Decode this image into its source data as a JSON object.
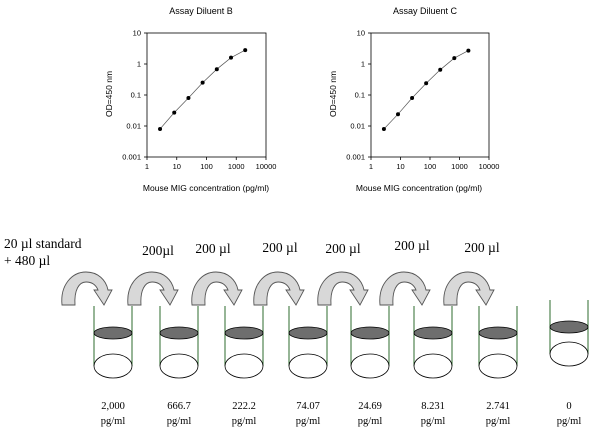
{
  "chart_data": [
    {
      "type": "scatter",
      "title": "Assay Diluent B",
      "xlabel": "Mouse MIG concentration (pg/ml)",
      "ylabel": "OD=450 nm",
      "xscale": "log",
      "yscale": "log",
      "xlim": [
        1,
        10000
      ],
      "ylim": [
        0.001,
        10
      ],
      "x_ticks": [
        "1",
        "10",
        "100",
        "1000",
        "10000"
      ],
      "y_ticks": [
        "0.001",
        "0.01",
        "0.1",
        "1",
        "10"
      ],
      "trendline": true,
      "points": [
        {
          "x": 2.741,
          "y": 0.008
        },
        {
          "x": 8.231,
          "y": 0.027
        },
        {
          "x": 24.69,
          "y": 0.08
        },
        {
          "x": 74.07,
          "y": 0.25
        },
        {
          "x": 222.2,
          "y": 0.68
        },
        {
          "x": 666.7,
          "y": 1.6
        },
        {
          "x": 2000,
          "y": 2.8
        }
      ]
    },
    {
      "type": "scatter",
      "title": "Assay Diluent C",
      "xlabel": "Mouse MIG concentration (pg/ml)",
      "ylabel": "OD=450 nm",
      "xscale": "log",
      "yscale": "log",
      "xlim": [
        1,
        10000
      ],
      "ylim": [
        0.001,
        10
      ],
      "x_ticks": [
        "1",
        "10",
        "100",
        "1000",
        "10000"
      ],
      "y_ticks": [
        "0.001",
        "0.01",
        "0.1",
        "1",
        "10"
      ],
      "trendline": true,
      "points": [
        {
          "x": 2.741,
          "y": 0.008
        },
        {
          "x": 8.231,
          "y": 0.024
        },
        {
          "x": 24.69,
          "y": 0.08
        },
        {
          "x": 74.07,
          "y": 0.24
        },
        {
          "x": 222.2,
          "y": 0.65
        },
        {
          "x": 666.7,
          "y": 1.55
        },
        {
          "x": 2000,
          "y": 2.7
        }
      ]
    }
  ],
  "dilution": {
    "initial_label_line1": "20 µl standard",
    "initial_label_line2": "+ 480 µl",
    "transfers": [
      "200µl",
      "200 µl",
      "200 µl",
      "200 µl",
      "200 µl",
      "200 µl"
    ],
    "tubes": [
      {
        "value": "2,000",
        "unit": "pg/ml"
      },
      {
        "value": "666.7",
        "unit": "pg/ml"
      },
      {
        "value": "222.2",
        "unit": "pg/ml"
      },
      {
        "value": "74.07",
        "unit": "pg/ml"
      },
      {
        "value": "24.69",
        "unit": "pg/ml"
      },
      {
        "value": "8.231",
        "unit": "pg/ml"
      },
      {
        "value": "2.741",
        "unit": "pg/ml"
      },
      {
        "value": "0",
        "unit": "pg/ml"
      }
    ]
  },
  "colors": {
    "tube_outline": "#2e6b2e",
    "tube_liquid": "#6e6e6e",
    "arrow_fill": "#d8d8d8",
    "arrow_stroke": "#555555"
  }
}
